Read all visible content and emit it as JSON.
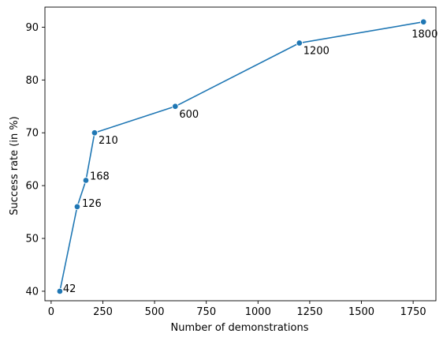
{
  "chart_data": {
    "type": "line",
    "title": "",
    "xlabel": "Number of demonstrations",
    "ylabel": "Success rate (in %)",
    "xlim": [
      -30,
      1860
    ],
    "ylim": [
      38.2,
      93.8
    ],
    "xticks": [
      0,
      250,
      500,
      750,
      1000,
      1250,
      1500,
      1750
    ],
    "yticks": [
      40,
      50,
      60,
      70,
      80,
      90
    ],
    "grid": false,
    "legend": "none",
    "line_color": "#1f77b4",
    "series": [
      {
        "x": [
          42,
          126,
          168,
          210,
          600,
          1200,
          1800
        ],
        "values": [
          40,
          56,
          61,
          70,
          75,
          87,
          91
        ],
        "labels": [
          "42",
          "126",
          "168",
          "210",
          "600",
          "1200",
          "1800"
        ]
      }
    ]
  }
}
